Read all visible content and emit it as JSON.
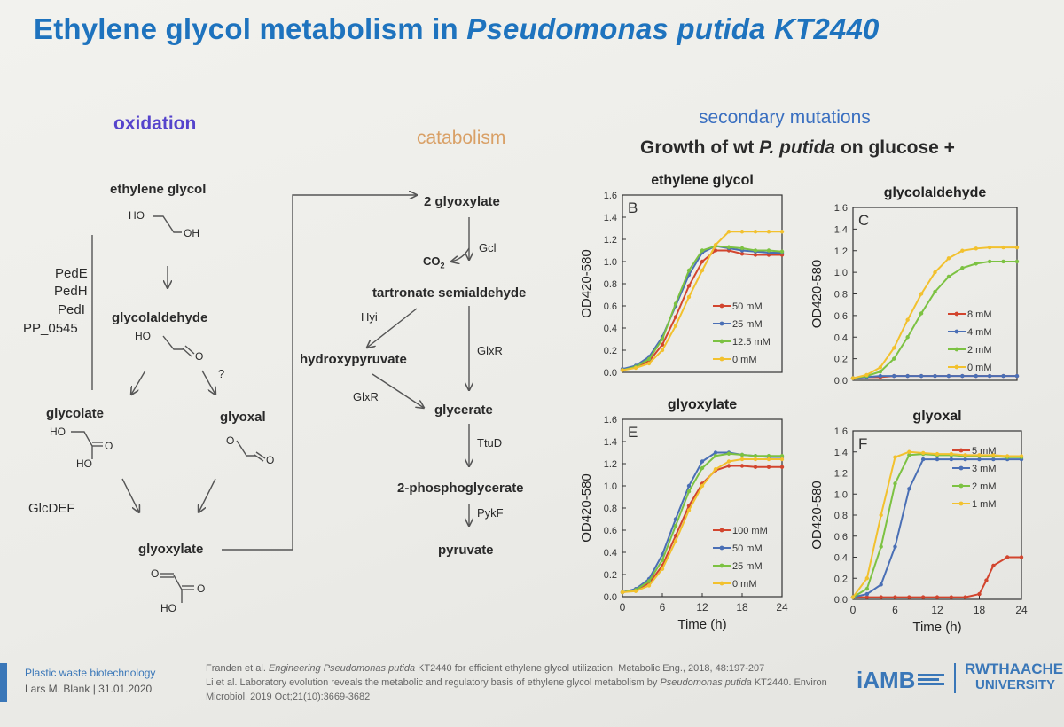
{
  "title_main": "Ethylene glycol metabolism in ",
  "title_italic": "Pseudomonas putida KT2440",
  "headings": {
    "oxidation": "oxidation",
    "catabolism": "catabolism",
    "secondary": "secondary mutations",
    "growth_prefix": "Growth of wt ",
    "growth_italic": "P. putida",
    "growth_suffix": " on glucose +"
  },
  "colors": {
    "title": "#1e73be",
    "oxidation": "#5544cc",
    "catabolism": "#d9a066",
    "secondary": "#3a6fc0"
  },
  "pathway": {
    "ethylene_glycol": "ethylene glycol",
    "glycolaldehyde": "glycolaldehyde",
    "glycolate": "glycolate",
    "glyoxal": "glyoxal",
    "glyoxylate": "glyoxylate",
    "enzymes_left": [
      "PedE",
      "PedH",
      "PedI",
      "PP_0545"
    ],
    "question": "?",
    "glcdef": "GlcDEF",
    "ho": "HO",
    "oh": "OH",
    "o": "O",
    "glyoxylate2": "2 glyoxylate",
    "gcl": "Gcl",
    "co2": "CO",
    "co2_sub": "2",
    "tartronate": "tartronate semialdehyde",
    "hyi": "Hyi",
    "hydroxypyruvate": "hydroxypyruvate",
    "glxr1": "GlxR",
    "glxr2": "GlxR",
    "glycerate": "glycerate",
    "ttud": "TtuD",
    "phosphoglycerate": "2-phosphoglycerate",
    "pykf": "PykF",
    "pyruvate": "pyruvate"
  },
  "footer": {
    "line1": "Plastic waste biotechnology",
    "line2": "Lars M. Blank | 31.01.2020",
    "ref1a": "Franden et al. ",
    "ref1b": "Engineering Pseudomonas putida",
    "ref1c": " KT2440 for efficient ethylene glycol utilization, Metabolic Eng., 2018,  48:197-207",
    "ref2a": "Li et al. Laboratory evolution reveals the metabolic and regulatory basis of ethylene glycol metabolism by ",
    "ref2b": "Pseudomonas putida",
    "ref2c": " KT2440.  Environ",
    "ref3": "Microbiol. 2019 Oct;21(10):3669-3682",
    "logo1": "iAMB",
    "logo2a": "RWTHAACHEN",
    "logo2b": "UNIVERSITY"
  },
  "chart_data": [
    {
      "type": "line",
      "panel": "B",
      "title": "ethylene glycol",
      "xlabel": "",
      "ylabel": "OD420-580",
      "xlim": [
        0,
        24
      ],
      "ylim": [
        0,
        1.6
      ],
      "xticks": [],
      "yticks": [
        0,
        0.2,
        0.4,
        0.6,
        0.8,
        1.0,
        1.2,
        1.4,
        1.6
      ],
      "legend_position": "bottom-right",
      "series": [
        {
          "name": "50 mM",
          "color": "#d2452e",
          "x": [
            0,
            2,
            4,
            6,
            8,
            10,
            12,
            14,
            16,
            18,
            20,
            22,
            24
          ],
          "y": [
            0.02,
            0.05,
            0.1,
            0.25,
            0.5,
            0.78,
            1.0,
            1.1,
            1.1,
            1.07,
            1.06,
            1.06,
            1.06
          ]
        },
        {
          "name": "25 mM",
          "color": "#4a6fb5",
          "x": [
            0,
            2,
            4,
            6,
            8,
            10,
            12,
            14,
            16,
            18,
            20,
            22,
            24
          ],
          "y": [
            0.03,
            0.06,
            0.14,
            0.32,
            0.6,
            0.88,
            1.08,
            1.14,
            1.12,
            1.1,
            1.09,
            1.08,
            1.08
          ]
        },
        {
          "name": "12.5 mM",
          "color": "#7cc242",
          "x": [
            0,
            2,
            4,
            6,
            8,
            10,
            12,
            14,
            16,
            18,
            20,
            22,
            24
          ],
          "y": [
            0.02,
            0.05,
            0.12,
            0.3,
            0.62,
            0.92,
            1.1,
            1.14,
            1.13,
            1.12,
            1.1,
            1.1,
            1.09
          ]
        },
        {
          "name": "0 mM",
          "color": "#f2c12e",
          "x": [
            0,
            2,
            4,
            6,
            8,
            10,
            12,
            14,
            16,
            18,
            20,
            22,
            24
          ],
          "y": [
            0.02,
            0.04,
            0.08,
            0.2,
            0.42,
            0.68,
            0.92,
            1.15,
            1.27,
            1.27,
            1.27,
            1.27,
            1.27
          ]
        }
      ]
    },
    {
      "type": "line",
      "panel": "C",
      "title": "glycolaldehyde",
      "xlabel": "",
      "ylabel": "OD420-580",
      "xlim": [
        0,
        24
      ],
      "ylim": [
        0,
        1.6
      ],
      "xticks": [],
      "yticks": [
        0,
        0.2,
        0.4,
        0.6,
        0.8,
        1.0,
        1.2,
        1.4,
        1.6
      ],
      "legend_position": "bottom-right",
      "series": [
        {
          "name": "8 mM",
          "color": "#d2452e",
          "x": [
            0,
            2,
            4,
            6,
            8,
            10,
            12,
            14,
            16,
            18,
            20,
            22,
            24
          ],
          "y": [
            0.02,
            0.03,
            0.03,
            0.04,
            0.04,
            0.04,
            0.04,
            0.04,
            0.04,
            0.04,
            0.04,
            0.04,
            0.04
          ]
        },
        {
          "name": "4 mM",
          "color": "#4a6fb5",
          "x": [
            0,
            2,
            4,
            6,
            8,
            10,
            12,
            14,
            16,
            18,
            20,
            22,
            24
          ],
          "y": [
            0.02,
            0.03,
            0.04,
            0.04,
            0.04,
            0.04,
            0.04,
            0.04,
            0.04,
            0.04,
            0.04,
            0.04,
            0.04
          ]
        },
        {
          "name": "2 mM",
          "color": "#7cc242",
          "x": [
            0,
            2,
            4,
            6,
            8,
            10,
            12,
            14,
            16,
            18,
            20,
            22,
            24
          ],
          "y": [
            0.02,
            0.04,
            0.08,
            0.2,
            0.4,
            0.62,
            0.82,
            0.96,
            1.04,
            1.08,
            1.1,
            1.1,
            1.1
          ]
        },
        {
          "name": "0 mM",
          "color": "#f2c12e",
          "x": [
            0,
            2,
            4,
            6,
            8,
            10,
            12,
            14,
            16,
            18,
            20,
            22,
            24
          ],
          "y": [
            0.02,
            0.05,
            0.12,
            0.3,
            0.56,
            0.8,
            1.0,
            1.13,
            1.2,
            1.22,
            1.23,
            1.23,
            1.23
          ]
        }
      ]
    },
    {
      "type": "line",
      "panel": "E",
      "title": "glyoxylate",
      "xlabel": "Time (h)",
      "ylabel": "OD420-580",
      "xlim": [
        0,
        24
      ],
      "ylim": [
        0,
        1.6
      ],
      "xticks": [
        0,
        6,
        12,
        18,
        24
      ],
      "yticks": [
        0,
        0.2,
        0.4,
        0.6,
        0.8,
        1.0,
        1.2,
        1.4,
        1.6
      ],
      "legend_position": "bottom-right",
      "series": [
        {
          "name": "100 mM",
          "color": "#d2452e",
          "x": [
            0,
            2,
            4,
            6,
            8,
            10,
            12,
            14,
            16,
            18,
            20,
            22,
            24
          ],
          "y": [
            0.04,
            0.06,
            0.12,
            0.28,
            0.55,
            0.82,
            1.02,
            1.14,
            1.18,
            1.18,
            1.17,
            1.17,
            1.17
          ]
        },
        {
          "name": "50 mM",
          "color": "#4a6fb5",
          "x": [
            0,
            2,
            4,
            6,
            8,
            10,
            12,
            14,
            16,
            18,
            20,
            22,
            24
          ],
          "y": [
            0.04,
            0.07,
            0.16,
            0.38,
            0.7,
            1.0,
            1.22,
            1.3,
            1.3,
            1.28,
            1.27,
            1.26,
            1.26
          ]
        },
        {
          "name": "25 mM",
          "color": "#7cc242",
          "x": [
            0,
            2,
            4,
            6,
            8,
            10,
            12,
            14,
            16,
            18,
            20,
            22,
            24
          ],
          "y": [
            0.04,
            0.06,
            0.14,
            0.33,
            0.64,
            0.95,
            1.16,
            1.27,
            1.29,
            1.28,
            1.27,
            1.27,
            1.27
          ]
        },
        {
          "name": "0 mM",
          "color": "#f2c12e",
          "x": [
            0,
            2,
            4,
            6,
            8,
            10,
            12,
            14,
            16,
            18,
            20,
            22,
            24
          ],
          "y": [
            0.04,
            0.05,
            0.1,
            0.25,
            0.5,
            0.78,
            1.0,
            1.15,
            1.22,
            1.24,
            1.24,
            1.24,
            1.24
          ]
        }
      ]
    },
    {
      "type": "line",
      "panel": "F",
      "title": "glyoxal",
      "xlabel": "Time (h)",
      "ylabel": "OD420-580",
      "xlim": [
        0,
        24
      ],
      "ylim": [
        0,
        1.6
      ],
      "xticks": [
        0,
        6,
        12,
        18,
        24
      ],
      "yticks": [
        0,
        0.2,
        0.4,
        0.6,
        0.8,
        1.0,
        1.2,
        1.4,
        1.6
      ],
      "legend_position": "top-right",
      "series": [
        {
          "name": "5 mM",
          "color": "#d2452e",
          "x": [
            0,
            2,
            4,
            6,
            8,
            10,
            12,
            14,
            16,
            18,
            19,
            20,
            22,
            24
          ],
          "y": [
            0.02,
            0.02,
            0.02,
            0.02,
            0.02,
            0.02,
            0.02,
            0.02,
            0.02,
            0.05,
            0.18,
            0.32,
            0.4,
            0.4
          ]
        },
        {
          "name": "3 mM",
          "color": "#4a6fb5",
          "x": [
            0,
            2,
            4,
            6,
            8,
            10,
            12,
            14,
            16,
            18,
            20,
            22,
            24
          ],
          "y": [
            0.02,
            0.05,
            0.14,
            0.5,
            1.05,
            1.33,
            1.33,
            1.33,
            1.33,
            1.33,
            1.33,
            1.33,
            1.33
          ]
        },
        {
          "name": "2 mM",
          "color": "#7cc242",
          "x": [
            0,
            2,
            4,
            6,
            8,
            10,
            12,
            14,
            16,
            18,
            20,
            22,
            24
          ],
          "y": [
            0.02,
            0.1,
            0.5,
            1.1,
            1.37,
            1.38,
            1.37,
            1.37,
            1.36,
            1.36,
            1.36,
            1.35,
            1.35
          ]
        },
        {
          "name": "1 mM",
          "color": "#f2c12e",
          "x": [
            0,
            2,
            4,
            6,
            8,
            10,
            12,
            14,
            16,
            18,
            20,
            22,
            24
          ],
          "y": [
            0.02,
            0.2,
            0.8,
            1.35,
            1.4,
            1.39,
            1.38,
            1.38,
            1.37,
            1.37,
            1.37,
            1.36,
            1.36
          ]
        }
      ]
    }
  ]
}
